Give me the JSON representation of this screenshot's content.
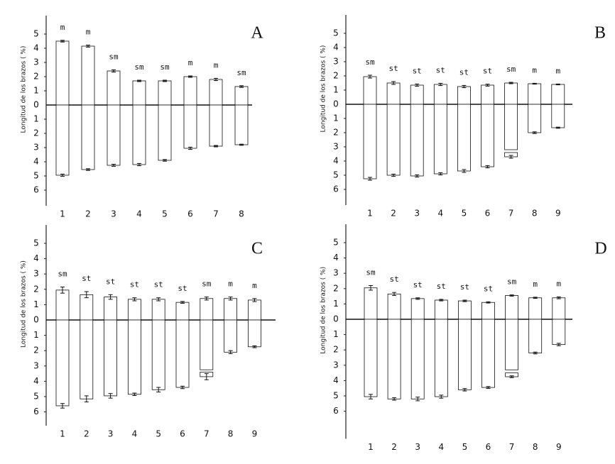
{
  "chart_data": [
    {
      "type": "bar",
      "title": "A",
      "y_label": "Longitud de los brazos ( %)",
      "categories": [
        "1",
        "2",
        "3",
        "4",
        "5",
        "6",
        "7",
        "8"
      ],
      "annotations": [
        "m",
        "m",
        "sm",
        "sm",
        "sm",
        "m",
        "m",
        "sm"
      ],
      "upper_values": [
        4.5,
        4.15,
        2.4,
        1.7,
        1.7,
        2.0,
        1.8,
        1.3
      ],
      "upper_errors": [
        0.06,
        0.07,
        0.08,
        0.05,
        0.05,
        0.05,
        0.08,
        0.06
      ],
      "lower_values": [
        -4.95,
        -4.55,
        -4.25,
        -4.2,
        -3.9,
        -3.05,
        -2.9,
        -2.8
      ],
      "lower_errors": [
        0.08,
        0.06,
        0.07,
        0.08,
        0.06,
        0.08,
        0.05,
        0.04
      ],
      "satellite_values": [
        null,
        null,
        null,
        null,
        null,
        null,
        null,
        null
      ],
      "ylim": [
        -7.1,
        6.3
      ],
      "yticks": [
        5,
        4,
        3,
        2,
        1,
        0,
        {
          "value": -1,
          "label": "1"
        },
        {
          "value": -2,
          "label": "2"
        },
        {
          "value": -3,
          "label": "3"
        },
        {
          "value": -4,
          "label": "4"
        },
        {
          "value": -5,
          "label": "5"
        },
        {
          "value": -6,
          "label": "6"
        }
      ],
      "grid": false,
      "color": "#ffffff"
    },
    {
      "type": "bar",
      "title": "B",
      "y_label": "Longitud de los brazos ( %)",
      "categories": [
        "1",
        "2",
        "3",
        "4",
        "5",
        "6",
        "7",
        "8",
        "9"
      ],
      "annotations": [
        "sm",
        "st",
        "st",
        "st",
        "st",
        "st",
        "sm",
        "m",
        "m"
      ],
      "upper_values": [
        1.95,
        1.5,
        1.35,
        1.4,
        1.25,
        1.35,
        1.5,
        1.45,
        1.4
      ],
      "upper_errors": [
        0.1,
        0.1,
        0.08,
        0.08,
        0.08,
        0.07,
        0.05,
        0.03,
        0.03
      ],
      "lower_values": [
        -5.25,
        -5.0,
        -5.05,
        -4.9,
        -4.7,
        -4.4,
        -3.2,
        -2.0,
        -1.65
      ],
      "lower_errors": [
        0.1,
        0.08,
        0.08,
        0.08,
        0.1,
        0.08,
        0.1,
        0.06,
        0.04
      ],
      "satellite_values": [
        null,
        null,
        null,
        null,
        null,
        null,
        [
          -3.4,
          -3.7
        ],
        null,
        null
      ],
      "ylim": [
        -7.1,
        6.3
      ],
      "yticks": [
        5,
        4,
        3,
        2,
        1,
        0,
        {
          "value": -1,
          "label": "1"
        },
        {
          "value": -2,
          "label": "2"
        },
        {
          "value": -3,
          "label": "3"
        },
        {
          "value": -4,
          "label": "4"
        },
        {
          "value": -5,
          "label": "5"
        },
        {
          "value": -6,
          "label": "6"
        }
      ],
      "grid": false,
      "color": "#ffffff"
    },
    {
      "type": "bar",
      "title": "C",
      "y_label": "Longitud de los brazos ( %)",
      "categories": [
        "1",
        "2",
        "3",
        "4",
        "5",
        "6",
        "7",
        "8",
        "9"
      ],
      "annotations": [
        "sm",
        "st",
        "st",
        "st",
        "st",
        "st",
        "sm",
        "m",
        "m"
      ],
      "upper_values": [
        1.95,
        1.65,
        1.5,
        1.35,
        1.35,
        1.15,
        1.4,
        1.4,
        1.3
      ],
      "upper_errors": [
        0.2,
        0.2,
        0.15,
        0.1,
        0.1,
        0.06,
        0.1,
        0.1,
        0.1
      ],
      "lower_values": [
        -5.6,
        -5.15,
        -4.95,
        -4.85,
        -4.55,
        -4.4,
        -3.25,
        -2.1,
        -1.75
      ],
      "lower_errors": [
        0.15,
        0.2,
        0.15,
        0.08,
        0.15,
        0.08,
        0.2,
        0.1,
        0.06
      ],
      "satellite_values": [
        null,
        null,
        null,
        null,
        null,
        null,
        [
          -3.4,
          -3.7
        ],
        null,
        null
      ],
      "ylim": [
        -6.9,
        6.2
      ],
      "yticks": [
        5,
        4,
        3,
        2,
        1,
        0,
        {
          "value": -1,
          "label": "1"
        },
        {
          "value": -2,
          "label": "2"
        },
        {
          "value": -3,
          "label": "3"
        },
        {
          "value": -4,
          "label": "4"
        },
        {
          "value": -5,
          "label": "5"
        },
        {
          "value": -6,
          "label": "6"
        }
      ],
      "grid": false,
      "color": "#ffffff"
    },
    {
      "type": "bar",
      "title": "D",
      "y_label": "Longitud de los brazos ( %)",
      "categories": [
        "1",
        "2",
        "3",
        "4",
        "5",
        "6",
        "7",
        "8",
        "9"
      ],
      "annotations": [
        "sm",
        "st",
        "st",
        "st",
        "st",
        "st",
        "sm",
        "m",
        "m"
      ],
      "upper_values": [
        2.05,
        1.65,
        1.35,
        1.25,
        1.2,
        1.1,
        1.55,
        1.4,
        1.4
      ],
      "upper_errors": [
        0.15,
        0.1,
        0.05,
        0.05,
        0.05,
        0.04,
        0.04,
        0.04,
        0.06
      ],
      "lower_values": [
        -5.05,
        -5.2,
        -5.2,
        -5.05,
        -4.6,
        -4.45,
        -3.3,
        -2.2,
        -1.65
      ],
      "lower_errors": [
        0.15,
        0.08,
        0.12,
        0.1,
        0.08,
        0.06,
        0.06,
        0.06,
        0.08
      ],
      "satellite_values": [
        null,
        null,
        null,
        null,
        null,
        null,
        [
          -3.5,
          -3.75
        ],
        null,
        null
      ],
      "ylim": [
        -7.8,
        6.2
      ],
      "yticks": [
        5,
        4,
        3,
        2,
        1,
        0,
        {
          "value": -1,
          "label": "1"
        },
        {
          "value": -2,
          "label": "2"
        },
        {
          "value": -3,
          "label": "3"
        },
        {
          "value": -4,
          "label": "4"
        },
        {
          "value": -5,
          "label": "5"
        },
        {
          "value": -6,
          "label": "6"
        }
      ],
      "grid": false,
      "color": "#ffffff"
    }
  ]
}
